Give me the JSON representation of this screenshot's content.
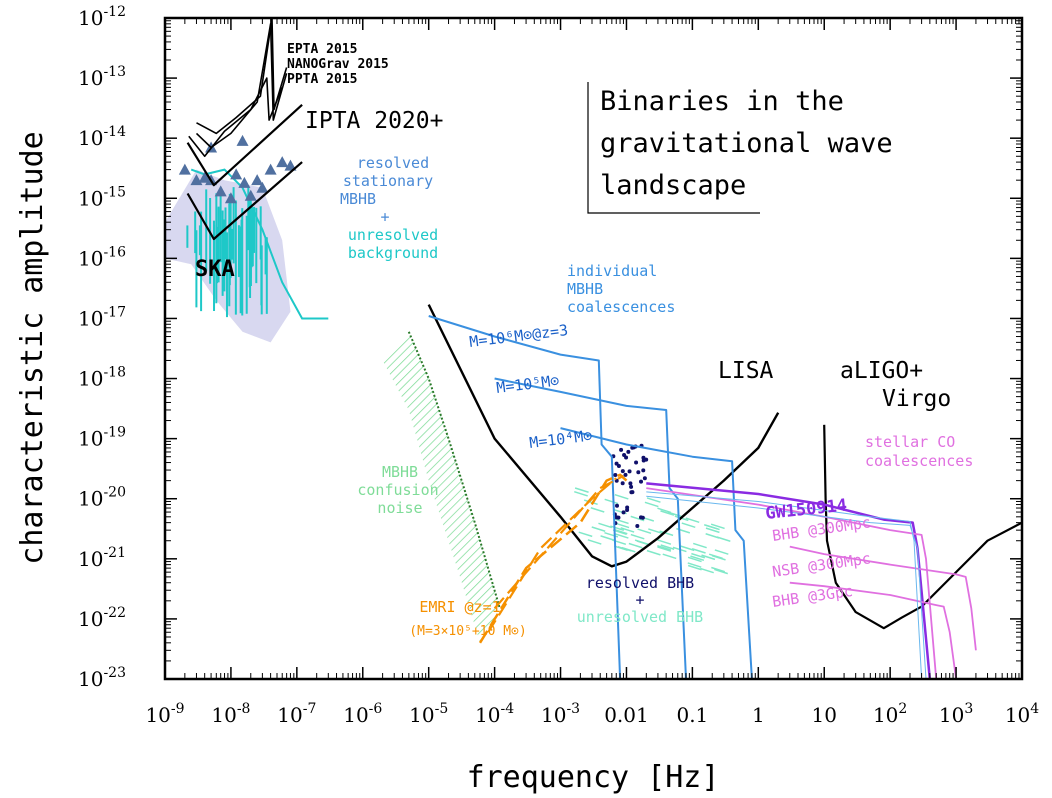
{
  "chart_data": {
    "type": "line",
    "title": "Binaries in the gravitational wave landscape",
    "title_lines": [
      "Binaries in the",
      "gravitational wave",
      "landscape"
    ],
    "xlabel": "frequency [Hz]",
    "ylabel": "characteristic amplitude",
    "x_scale": "log",
    "y_scale": "log",
    "xlim": [
      1e-09,
      10000.0
    ],
    "ylim": [
      1e-23,
      1e-12
    ],
    "x_ticks": [
      {
        "v": 1e-09,
        "label": "10",
        "sup": "-9"
      },
      {
        "v": 1e-08,
        "label": "10",
        "sup": "-8"
      },
      {
        "v": 1e-07,
        "label": "10",
        "sup": "-7"
      },
      {
        "v": 1e-06,
        "label": "10",
        "sup": "-6"
      },
      {
        "v": 1e-05,
        "label": "10",
        "sup": "-5"
      },
      {
        "v": 0.0001,
        "label": "10",
        "sup": "-4"
      },
      {
        "v": 0.001,
        "label": "10",
        "sup": "-3"
      },
      {
        "v": 0.01,
        "label": "0.01",
        "sup": ""
      },
      {
        "v": 0.1,
        "label": "0.1",
        "sup": ""
      },
      {
        "v": 1,
        "label": "1",
        "sup": ""
      },
      {
        "v": 10,
        "label": "10",
        "sup": ""
      },
      {
        "v": 100,
        "label": "10",
        "sup": "2"
      },
      {
        "v": 1000,
        "label": "10",
        "sup": "3"
      },
      {
        "v": 10000,
        "label": "10",
        "sup": "4"
      }
    ],
    "y_ticks": [
      {
        "v": -12,
        "label": "10",
        "sup": "-12"
      },
      {
        "v": -13,
        "label": "10",
        "sup": "-13"
      },
      {
        "v": -14,
        "label": "10",
        "sup": "-14"
      },
      {
        "v": -15,
        "label": "10",
        "sup": "-15"
      },
      {
        "v": -16,
        "label": "10",
        "sup": "-16"
      },
      {
        "v": -17,
        "label": "10",
        "sup": "-17"
      },
      {
        "v": -18,
        "label": "10",
        "sup": "-18"
      },
      {
        "v": -19,
        "label": "10",
        "sup": "-19"
      },
      {
        "v": -20,
        "label": "10",
        "sup": "-20"
      },
      {
        "v": -21,
        "label": "10",
        "sup": "-21"
      },
      {
        "v": -22,
        "label": "10",
        "sup": "-22"
      },
      {
        "v": -23,
        "label": "10",
        "sup": "-23"
      }
    ],
    "colors": {
      "ska_cloud": "#d8d8f0",
      "cyan": "#1ec8c8",
      "triangle": "#5070a0",
      "mbhb_blue": "#3a90e0",
      "label_blue": "#4a8ad6",
      "emri": "#f59000",
      "confusion": "#7fdc98",
      "confusion_edge": "#2a7a2a",
      "bhb_dots": "#10106a",
      "unresolved_bhb": "#80e8c8",
      "stellar": "#e070e0",
      "gw150914": "#8a2be2",
      "sensitivity": "#000000"
    },
    "series": [
      {
        "name": "EPTA 2015",
        "points": [
          [
            2.3e-09,
            1.08e-14
          ],
          [
            4e-09,
            5e-15
          ],
          [
            8e-09,
            1.3e-14
          ],
          [
            2e-08,
            3e-14
          ],
          [
            3.5e-08,
            1e-13
          ],
          [
            3.8e-08,
            2e-14
          ],
          [
            6e-08,
            7e-14
          ]
        ]
      },
      {
        "name": "NANOGrav 2015",
        "points": [
          [
            3e-09,
            1.2e-14
          ],
          [
            5e-09,
            7e-15
          ],
          [
            1e-08,
            1.2e-14
          ],
          [
            2.5e-08,
            4e-14
          ],
          [
            4e-08,
            8e-13
          ],
          [
            4.4e-08,
            2e-14
          ],
          [
            7e-08,
            1.2e-13
          ]
        ]
      },
      {
        "name": "PPTA 2015",
        "points": [
          [
            3e-09,
            1.8e-14
          ],
          [
            6e-09,
            1.2e-14
          ],
          [
            1.2e-08,
            2.2e-14
          ],
          [
            2.8e-08,
            5e-14
          ],
          [
            4.2e-08,
            1e-12
          ],
          [
            4.5e-08,
            3e-14
          ],
          [
            7e-08,
            1.5e-13
          ]
        ]
      },
      {
        "name": "IPTA 2020+",
        "points": [
          [
            2.2e-09,
            8.4e-15
          ],
          [
            5.5e-09,
            1.65e-15
          ],
          [
            1.2e-07,
            3.6e-14
          ]
        ]
      },
      {
        "name": "SKA",
        "points": [
          [
            2.2e-09,
            1.2e-15
          ],
          [
            5.5e-09,
            2.1e-16
          ],
          [
            1.2e-07,
            4e-15
          ]
        ]
      },
      {
        "name": "LISA",
        "points": [
          [
            1e-05,
            1.7e-17
          ],
          [
            0.0001,
            1e-19
          ],
          [
            0.001,
            5e-21
          ],
          [
            0.003,
            1.1e-21
          ],
          [
            0.006,
            7.5e-22
          ],
          [
            0.01,
            9e-22
          ],
          [
            0.03,
            2.2e-21
          ],
          [
            0.1,
            7e-21
          ],
          [
            0.3,
            2e-20
          ],
          [
            1,
            7e-20
          ],
          [
            2,
            2.7e-19
          ]
        ]
      },
      {
        "name": "aLIGO+ Virgo",
        "points": [
          [
            10,
            1.7e-19
          ],
          [
            10.5,
            1e-20
          ],
          [
            11,
            2e-21
          ],
          [
            15,
            4e-22
          ],
          [
            30,
            1.3e-22
          ],
          [
            80,
            7e-23
          ],
          [
            150,
            1.05e-22
          ],
          [
            300,
            1.6e-22
          ],
          [
            1000,
            6e-22
          ],
          [
            3000,
            2e-21
          ],
          [
            10000,
            4e-21
          ]
        ]
      },
      {
        "name": "M=10^6 M⊙ @z=3",
        "points": [
          [
            1e-05,
            1.1e-17
          ],
          [
            0.0001,
            5e-18
          ],
          [
            0.001,
            2.5e-18
          ],
          [
            0.0038,
            2e-18
          ],
          [
            0.0042,
            8e-20
          ],
          [
            0.006,
            5e-20
          ],
          [
            0.008,
            1e-23
          ]
        ]
      },
      {
        "name": "M=10^5 M⊙",
        "points": [
          [
            0.0001,
            1e-18
          ],
          [
            0.001,
            6e-19
          ],
          [
            0.01,
            3.5e-19
          ],
          [
            0.04,
            3e-19
          ],
          [
            0.045,
            1.5e-20
          ],
          [
            0.06,
            1e-20
          ],
          [
            0.08,
            1e-23
          ]
        ]
      },
      {
        "name": "M=10^4 M⊙",
        "points": [
          [
            0.001,
            1.5e-19
          ],
          [
            0.01,
            8e-20
          ],
          [
            0.1,
            5e-20
          ],
          [
            0.4,
            4.2e-20
          ],
          [
            0.45,
            3e-21
          ],
          [
            0.6,
            2e-21
          ],
          [
            0.8,
            1e-23
          ]
        ]
      },
      {
        "name": "GW150914",
        "points": [
          [
            0.02,
            1.8e-20
          ],
          [
            1,
            1.2e-20
          ],
          [
            10,
            8e-21
          ],
          [
            80,
            4.5e-21
          ],
          [
            220,
            4e-21
          ],
          [
            260,
            1.5e-21
          ],
          [
            400,
            1e-23
          ]
        ]
      },
      {
        "name": "BHB @300Mpc",
        "points": [
          [
            0.02,
            1.5e-20
          ],
          [
            1,
            8e-21
          ],
          [
            10,
            5e-21
          ],
          [
            100,
            3e-21
          ],
          [
            300,
            2.5e-21
          ],
          [
            350,
            1e-21
          ],
          [
            500,
            1e-23
          ]
        ]
      },
      {
        "name": "NSB @300Mpc",
        "points": [
          [
            3,
            1.6e-21
          ],
          [
            10,
            1.2e-21
          ],
          [
            100,
            8e-22
          ],
          [
            1000,
            5.5e-22
          ],
          [
            1400,
            5e-22
          ],
          [
            1700,
            1.5e-22
          ],
          [
            2000,
            3e-23
          ]
        ]
      },
      {
        "name": "BHB @3Gpc",
        "points": [
          [
            3,
            4e-22
          ],
          [
            10,
            3.5e-22
          ],
          [
            100,
            2.5e-22
          ],
          [
            500,
            1.7e-22
          ],
          [
            650,
            1.6e-22
          ],
          [
            800,
            6e-23
          ],
          [
            1000,
            1e-23
          ]
        ]
      },
      {
        "name": "EMRI @z=1",
        "points": [
          [
            6e-05,
            4e-23
          ],
          [
            0.0003,
            7e-22
          ],
          [
            0.002,
            4e-21
          ],
          [
            0.005,
            2e-20
          ],
          [
            0.008,
            2.5e-20
          ],
          [
            0.01,
            2e-20
          ]
        ]
      }
    ],
    "confusion_band": {
      "upper": [
        [
          5e-06,
          6e-18
        ],
        [
          1e-05,
          1e-18
        ],
        [
          2e-05,
          1e-19
        ],
        [
          5e-05,
          4e-21
        ],
        [
          0.00012,
          1.5e-22
        ]
      ],
      "lower": [
        [
          2e-06,
          2e-18
        ],
        [
          5e-06,
          3e-19
        ],
        [
          1e-05,
          2e-20
        ],
        [
          3e-05,
          5e-22
        ],
        [
          6e-05,
          4e-23
        ],
        [
          0.00012,
          1.5e-22
        ]
      ]
    },
    "ska_triangles": [
      [
        2e-09,
        3e-15
      ],
      [
        3e-09,
        2e-15
      ],
      [
        4e-09,
        2.2e-15
      ],
      [
        5e-09,
        2e-15
      ],
      [
        7e-09,
        1.3e-15
      ],
      [
        1e-08,
        1e-15
      ],
      [
        1.2e-08,
        2.5e-15
      ],
      [
        1.6e-08,
        1.8e-15
      ],
      [
        2e-08,
        1.1e-15
      ],
      [
        2.5e-08,
        2e-15
      ],
      [
        3e-08,
        1.5e-15
      ],
      [
        4e-08,
        3e-15
      ],
      [
        6e-08,
        4e-15
      ],
      [
        8e-08,
        3.5e-15
      ],
      [
        5e-09,
        7e-15
      ],
      [
        1.5e-08,
        9e-15
      ]
    ],
    "annotations": {
      "epta": "EPTA 2015",
      "nanograv": "NANOGrav 2015",
      "ppta": "PPTA 2015",
      "ipta": "IPTA 2020+",
      "resolved_mbhb": [
        "resolved",
        "stationary",
        "MBHB",
        "+",
        "unresolved",
        "background"
      ],
      "ska": "SKA",
      "individual": [
        "individual",
        "MBHB",
        "coalescences"
      ],
      "m6": "M=10⁶M⊙@z=3",
      "m5": "M=10⁵M⊙",
      "m4": "M=10⁴M⊙",
      "lisa": "LISA",
      "aligo": [
        "aLIGO+",
        "Virgo"
      ],
      "stellar": [
        "stellar CO",
        "coalescences"
      ],
      "confusion": [
        "MBHB",
        "confusion",
        "noise"
      ],
      "gw150914": "GW150914",
      "bhb300": "BHB @300Mpc",
      "nsb300": "NSB @300Mpc",
      "bhb3": "BHB @3Gpc",
      "resolved_bhb": [
        "resolved BHB",
        "+",
        "unresolved BHB"
      ],
      "emri": [
        "EMRI @z=1",
        "(M=3×10⁵+10 M⊙)"
      ]
    }
  }
}
